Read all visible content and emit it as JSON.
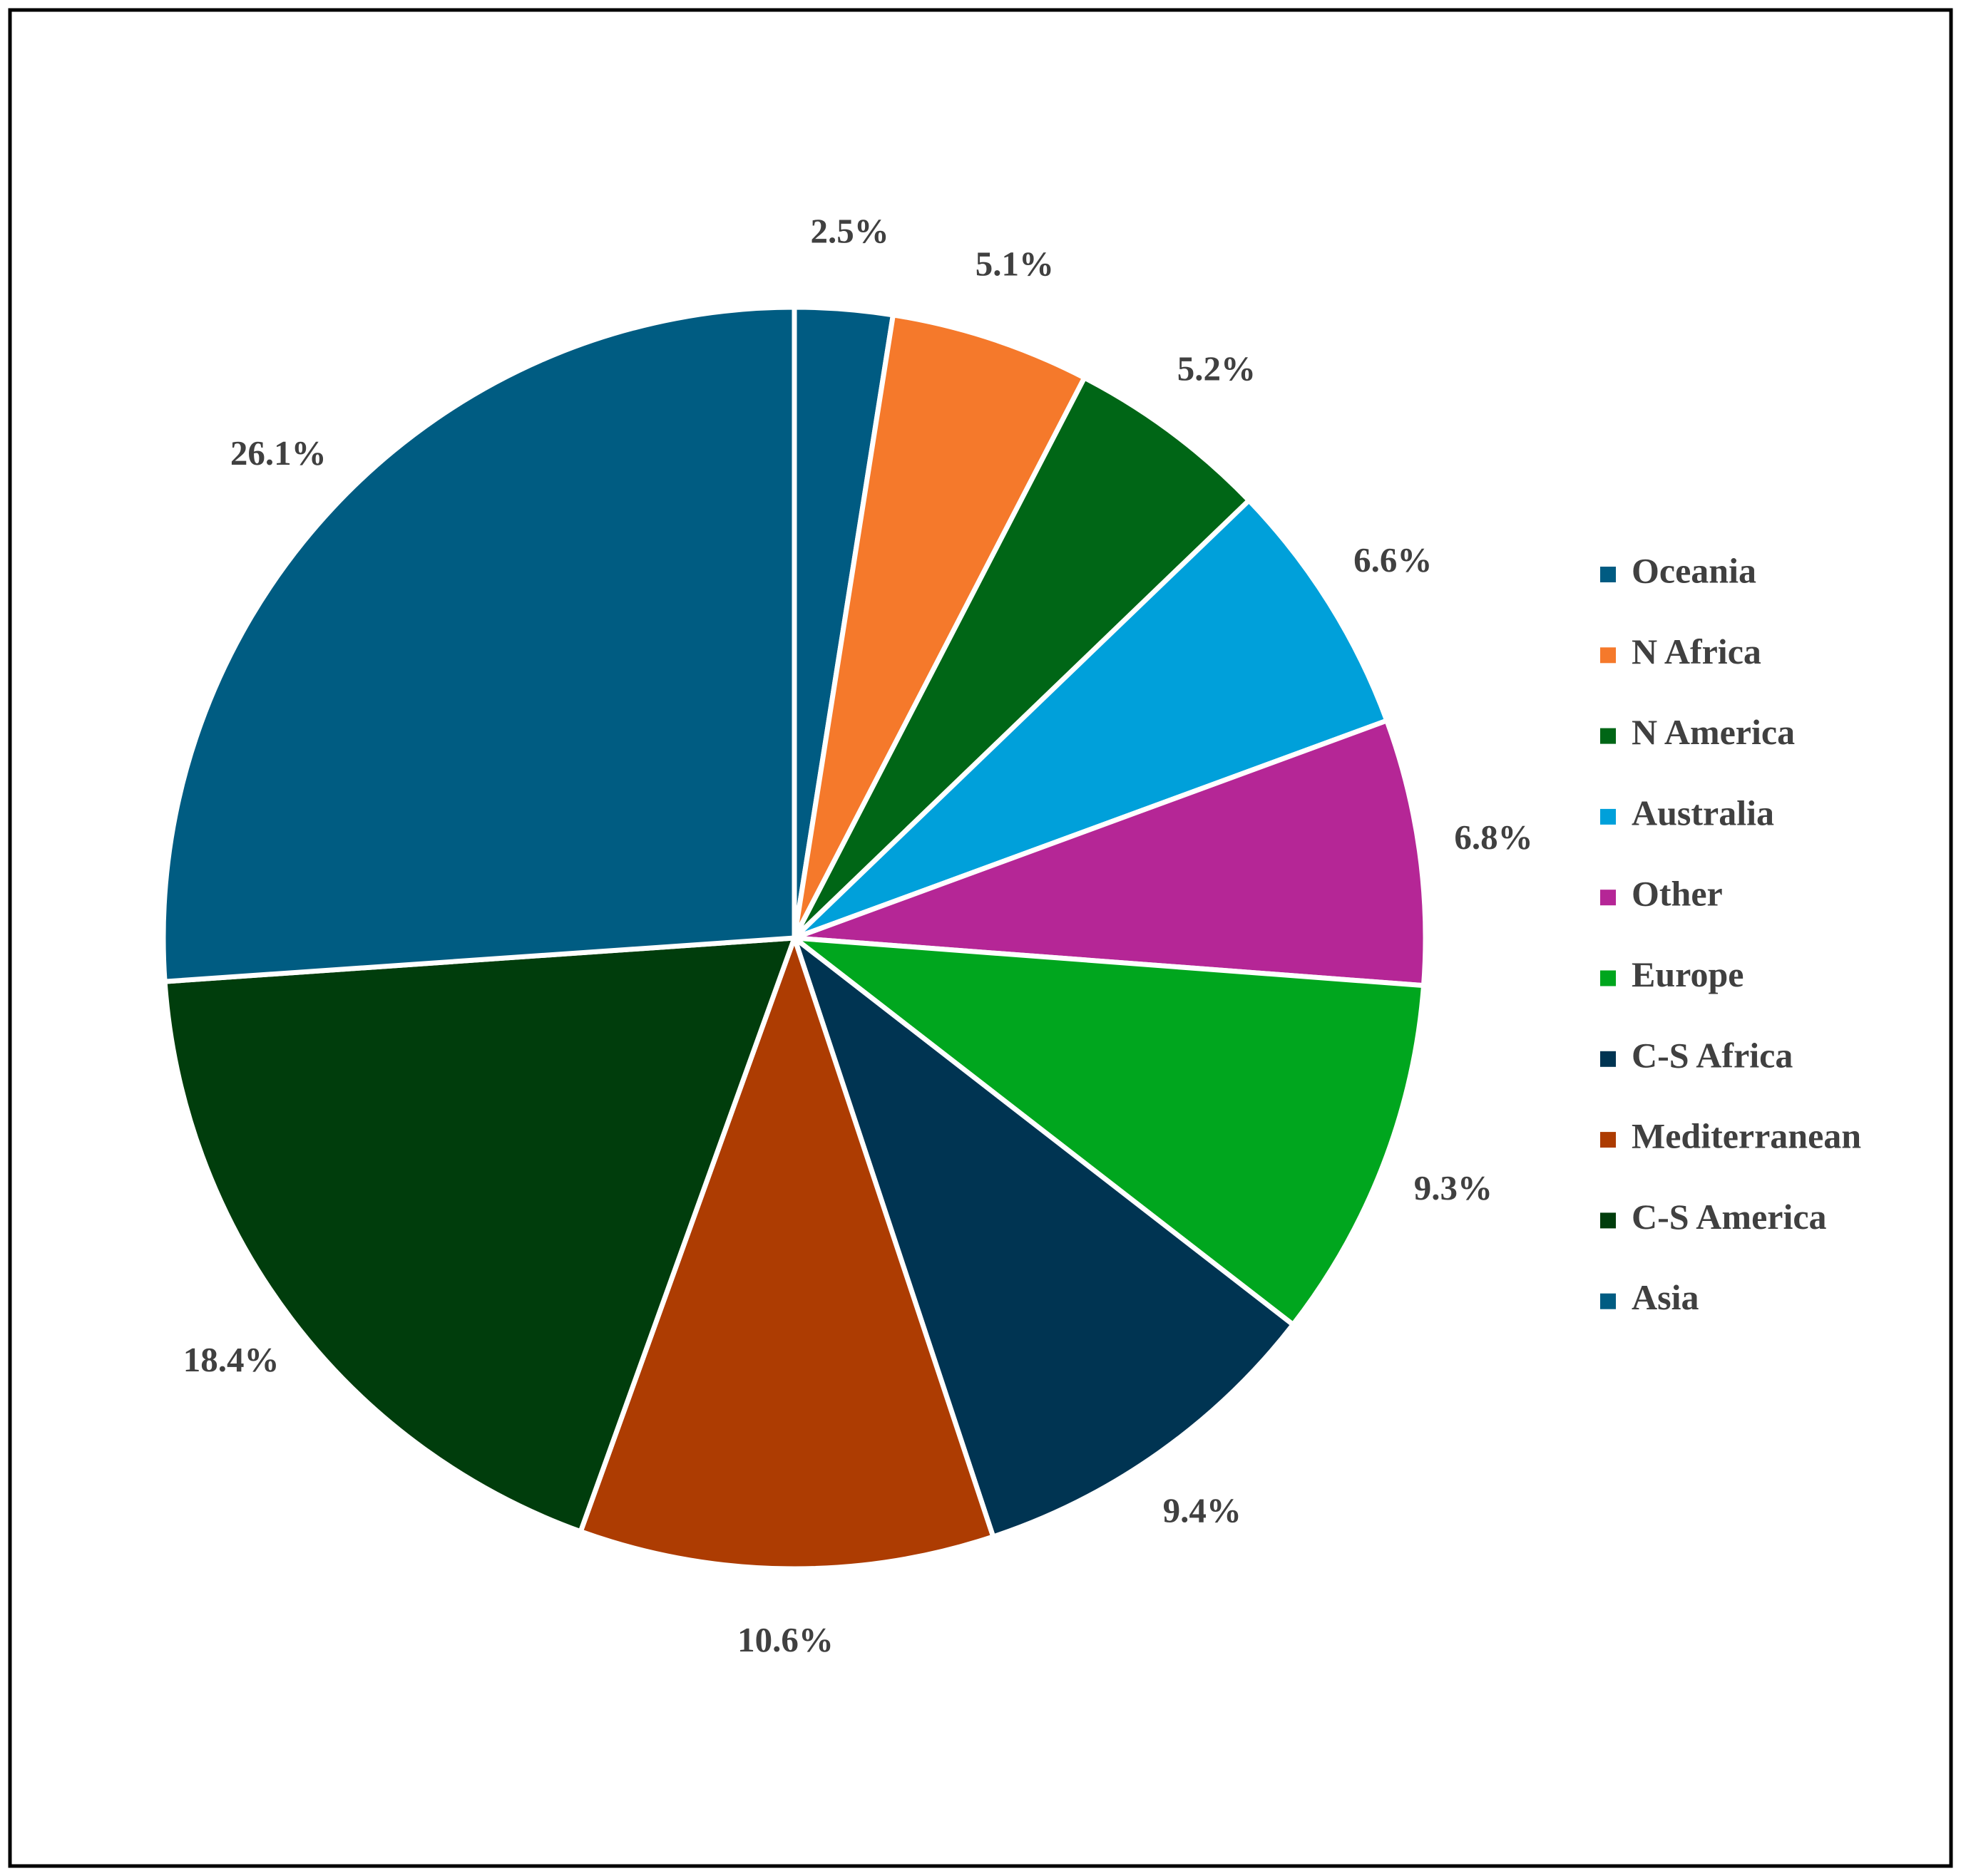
{
  "chart_data": {
    "type": "pie",
    "categories": [
      "Oceania",
      "N Africa",
      "N America",
      "Australia",
      "Other",
      "Europe",
      "C-S Africa",
      "Mediterranean",
      "C-S America",
      "Asia"
    ],
    "values": [
      2.5,
      5.1,
      5.2,
      6.6,
      6.8,
      9.3,
      9.4,
      10.6,
      18.4,
      26.1
    ],
    "value_labels": [
      "2.5%",
      "5.1%",
      "5.2%",
      "6.6%",
      "6.8%",
      "9.3%",
      "9.4%",
      "10.6%",
      "18.4%",
      "26.1%"
    ],
    "colors": [
      "#005b82",
      "#f5792b",
      "#006616",
      "#00a0da",
      "#b52696",
      "#00a61e",
      "#003452",
      "#ad3c02",
      "#003d0c",
      "#005c82"
    ],
    "legend": "right"
  }
}
